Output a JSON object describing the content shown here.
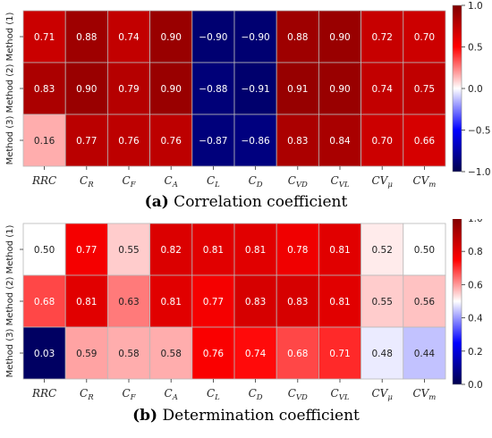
{
  "chart_data": [
    {
      "type": "heatmap",
      "title": "",
      "columns": [
        "RRC",
        "C_R",
        "C_F",
        "C_A",
        "C_L",
        "C_D",
        "C_VD",
        "C_VL",
        "CV_μ",
        "CV_m"
      ],
      "column_labels": [
        {
          "main": "RRC",
          "sub": ""
        },
        {
          "main": "C",
          "sub": "R"
        },
        {
          "main": "C",
          "sub": "F"
        },
        {
          "main": "C",
          "sub": "A"
        },
        {
          "main": "C",
          "sub": "L"
        },
        {
          "main": "C",
          "sub": "D"
        },
        {
          "main": "C",
          "sub": "VD"
        },
        {
          "main": "C",
          "sub": "VL"
        },
        {
          "main": "CV",
          "sub": "μ"
        },
        {
          "main": "CV",
          "sub": "m"
        }
      ],
      "rows": [
        "Method (1)",
        "Method (2)",
        "Method (3)"
      ],
      "values": [
        [
          0.71,
          0.88,
          0.74,
          0.9,
          -0.9,
          -0.9,
          0.88,
          0.9,
          0.72,
          0.7
        ],
        [
          0.83,
          0.9,
          0.79,
          0.9,
          -0.88,
          -0.91,
          0.91,
          0.9,
          0.74,
          0.75
        ],
        [
          0.16,
          0.77,
          0.76,
          0.76,
          -0.87,
          -0.86,
          0.83,
          0.84,
          0.7,
          0.66
        ]
      ],
      "labels": [
        [
          "0.71",
          "0.88",
          "0.74",
          "0.90",
          "−0.90",
          "−0.90",
          "0.88",
          "0.90",
          "0.72",
          "0.70"
        ],
        [
          "0.83",
          "0.90",
          "0.79",
          "0.90",
          "−0.88",
          "−0.91",
          "0.91",
          "0.90",
          "0.74",
          "0.75"
        ],
        [
          "0.16",
          "0.77",
          "0.76",
          "0.76",
          "−0.87",
          "−0.86",
          "0.83",
          "0.84",
          "0.70",
          "0.66"
        ]
      ],
      "colorbar": {
        "range": [
          -1.0,
          1.0
        ],
        "ticks": [
          "1.0",
          "0.5",
          "0.0",
          "−0.5",
          "−1.0"
        ],
        "tick_values": [
          1.0,
          0.5,
          0.0,
          -0.5,
          -1.0
        ]
      },
      "colormap": "seismic",
      "caption_bold": "(a)",
      "caption_text": " Correlation coefficient"
    },
    {
      "type": "heatmap",
      "title": "",
      "columns": [
        "RRC",
        "C_R",
        "C_F",
        "C_A",
        "C_L",
        "C_D",
        "C_VD",
        "C_VL",
        "CV_μ",
        "CV_m"
      ],
      "column_labels": [
        {
          "main": "RRC",
          "sub": ""
        },
        {
          "main": "C",
          "sub": "R"
        },
        {
          "main": "C",
          "sub": "F"
        },
        {
          "main": "C",
          "sub": "A"
        },
        {
          "main": "C",
          "sub": "L"
        },
        {
          "main": "C",
          "sub": "D"
        },
        {
          "main": "C",
          "sub": "VD"
        },
        {
          "main": "C",
          "sub": "VL"
        },
        {
          "main": "CV",
          "sub": "μ"
        },
        {
          "main": "CV",
          "sub": "m"
        }
      ],
      "rows": [
        "Method (1)",
        "Method (2)",
        "Method (3)"
      ],
      "values": [
        [
          0.5,
          0.77,
          0.55,
          0.82,
          0.81,
          0.81,
          0.78,
          0.81,
          0.52,
          0.5
        ],
        [
          0.68,
          0.81,
          0.63,
          0.81,
          0.77,
          0.83,
          0.83,
          0.81,
          0.55,
          0.56
        ],
        [
          0.03,
          0.59,
          0.58,
          0.58,
          0.76,
          0.74,
          0.68,
          0.71,
          0.48,
          0.44
        ]
      ],
      "labels": [
        [
          "0.50",
          "0.77",
          "0.55",
          "0.82",
          "0.81",
          "0.81",
          "0.78",
          "0.81",
          "0.52",
          "0.50"
        ],
        [
          "0.68",
          "0.81",
          "0.63",
          "0.81",
          "0.77",
          "0.83",
          "0.83",
          "0.81",
          "0.55",
          "0.56"
        ],
        [
          "0.03",
          "0.59",
          "0.58",
          "0.58",
          "0.76",
          "0.74",
          "0.68",
          "0.71",
          "0.48",
          "0.44"
        ]
      ],
      "colorbar": {
        "range": [
          0.0,
          1.0
        ],
        "ticks": [
          "1.0",
          "0.8",
          "0.6",
          "0.4",
          "0.2",
          "0.0"
        ],
        "tick_values": [
          1.0,
          0.8,
          0.6,
          0.4,
          0.2,
          0.0
        ]
      },
      "colormap": "seismic",
      "caption_bold": "(b)",
      "caption_text": " Determination coefficient"
    }
  ]
}
